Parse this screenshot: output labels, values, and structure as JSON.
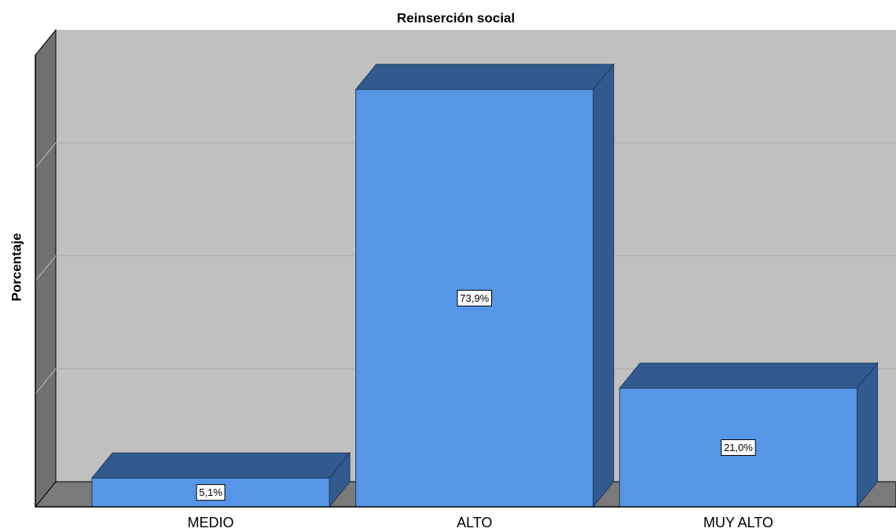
{
  "chart_data": {
    "type": "bar3d",
    "title": "Reinserción social",
    "y_label": "Porcentaje",
    "categories": [
      "MEDIO",
      "ALTO",
      "MUY ALTO"
    ],
    "values": [
      5.1,
      73.9,
      21.0
    ],
    "value_labels": [
      "5,1%",
      "73,9%",
      "21,0%"
    ],
    "color": "#5596e6",
    "side_color": "#335a8f",
    "ylim": [
      0,
      80
    ],
    "yticks": [
      0,
      20,
      40,
      60,
      80
    ],
    "grid": true
  }
}
